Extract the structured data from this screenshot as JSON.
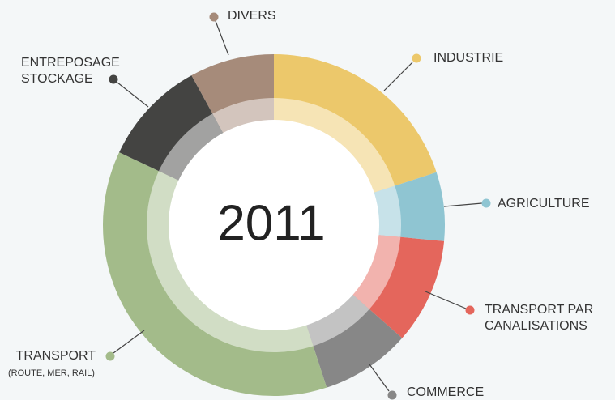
{
  "chart_data": {
    "type": "donut",
    "title": "2011",
    "categories": [
      [
        "INDUSTRIE"
      ],
      [
        "AGRICULTURE"
      ],
      [
        "TRANSPORT PAR",
        "CANALISATIONS"
      ],
      [
        "COMMERCE"
      ],
      [
        "TRANSPORT"
      ],
      [
        "ENTREPOSAGE",
        "STOCKAGE"
      ],
      [
        "DIVERS"
      ]
    ],
    "sublabels": [
      null,
      null,
      null,
      null,
      "(ROUTE, MER, RAIL)",
      null,
      null
    ],
    "values": [
      20,
      6.5,
      10,
      8.5,
      37,
      10,
      8
    ],
    "colors": [
      "#ecc86b",
      "#8fc5d2",
      "#e4665c",
      "#878787",
      "#a3bb8a",
      "#444442",
      "#a68b7a"
    ]
  }
}
